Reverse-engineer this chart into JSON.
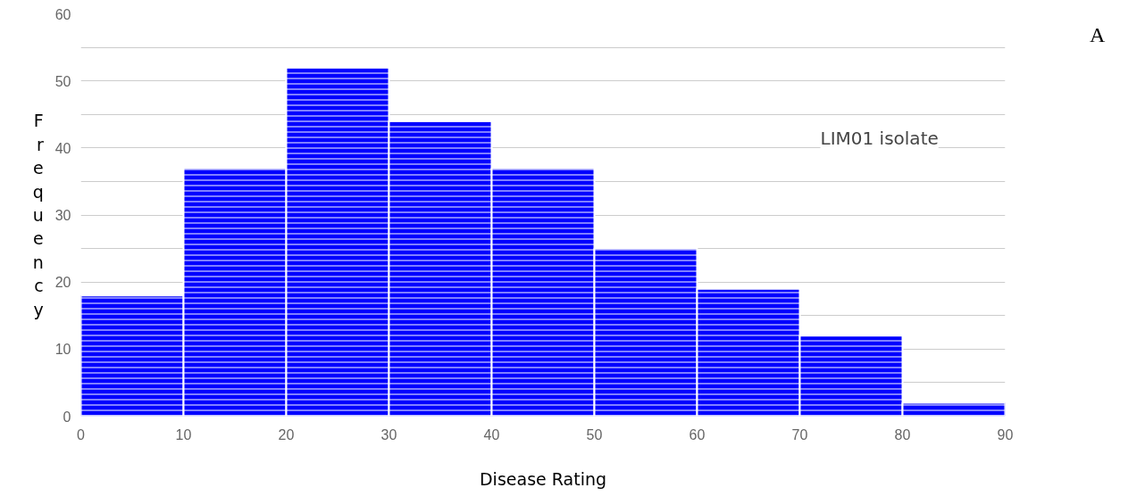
{
  "chart_data": {
    "type": "histogram",
    "xlabel": "Disease Rating",
    "ylabel": "Frequency",
    "annotations": [
      "LIM01 isolate",
      "A"
    ],
    "bins": [
      0,
      10,
      20,
      30,
      40,
      50,
      60,
      70,
      80,
      90
    ],
    "values": [
      18,
      37,
      52,
      44,
      37,
      25,
      19,
      12,
      2
    ],
    "color": "#0000ff",
    "xlim": [
      0,
      90
    ],
    "xticks": [
      0,
      10,
      20,
      30,
      40,
      50,
      60,
      70,
      80,
      90
    ],
    "ylim": [
      0,
      60
    ],
    "yticks": [
      0,
      {
        "value": 5,
        "label": null
      },
      10,
      {
        "value": 15,
        "label": null
      },
      20,
      {
        "value": 25,
        "label": null
      },
      30,
      {
        "value": 35,
        "label": null
      },
      40,
      {
        "value": 45,
        "label": null
      },
      50,
      {
        "value": 55,
        "label": null
      },
      60
    ],
    "grid": "y"
  }
}
